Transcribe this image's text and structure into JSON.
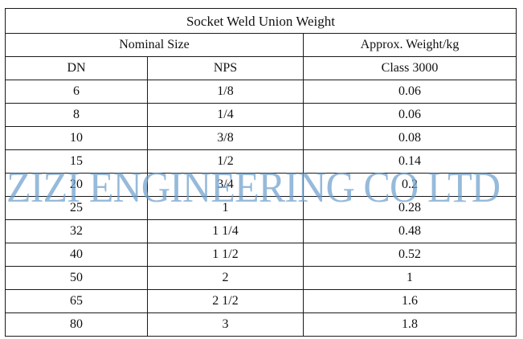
{
  "table": {
    "title": "Socket Weld Union Weight",
    "group_headers": {
      "nominal_size": "Nominal Size",
      "approx_weight": "Approx. Weight/kg"
    },
    "sub_headers": {
      "dn": "DN",
      "nps": "NPS",
      "class": "Class 3000"
    },
    "rows": [
      {
        "dn": "6",
        "nps": "1/8",
        "weight": "0.06"
      },
      {
        "dn": "8",
        "nps": "1/4",
        "weight": "0.06"
      },
      {
        "dn": "10",
        "nps": "3/8",
        "weight": "0.08"
      },
      {
        "dn": "15",
        "nps": "1/2",
        "weight": "0.14"
      },
      {
        "dn": "20",
        "nps": "3/4",
        "weight": "0.2"
      },
      {
        "dn": "25",
        "nps": "1",
        "weight": "0.28"
      },
      {
        "dn": "32",
        "nps": "1 1/4",
        "weight": "0.48"
      },
      {
        "dn": "40",
        "nps": "1 1/2",
        "weight": "0.52"
      },
      {
        "dn": "50",
        "nps": "2",
        "weight": "1"
      },
      {
        "dn": "65",
        "nps": "2 1/2",
        "weight": "1.6"
      },
      {
        "dn": "80",
        "nps": "3",
        "weight": "1.8"
      }
    ]
  },
  "watermark": {
    "text": "ZIZI ENGINEERING CO LTD",
    "color": "#6ea0cd"
  }
}
